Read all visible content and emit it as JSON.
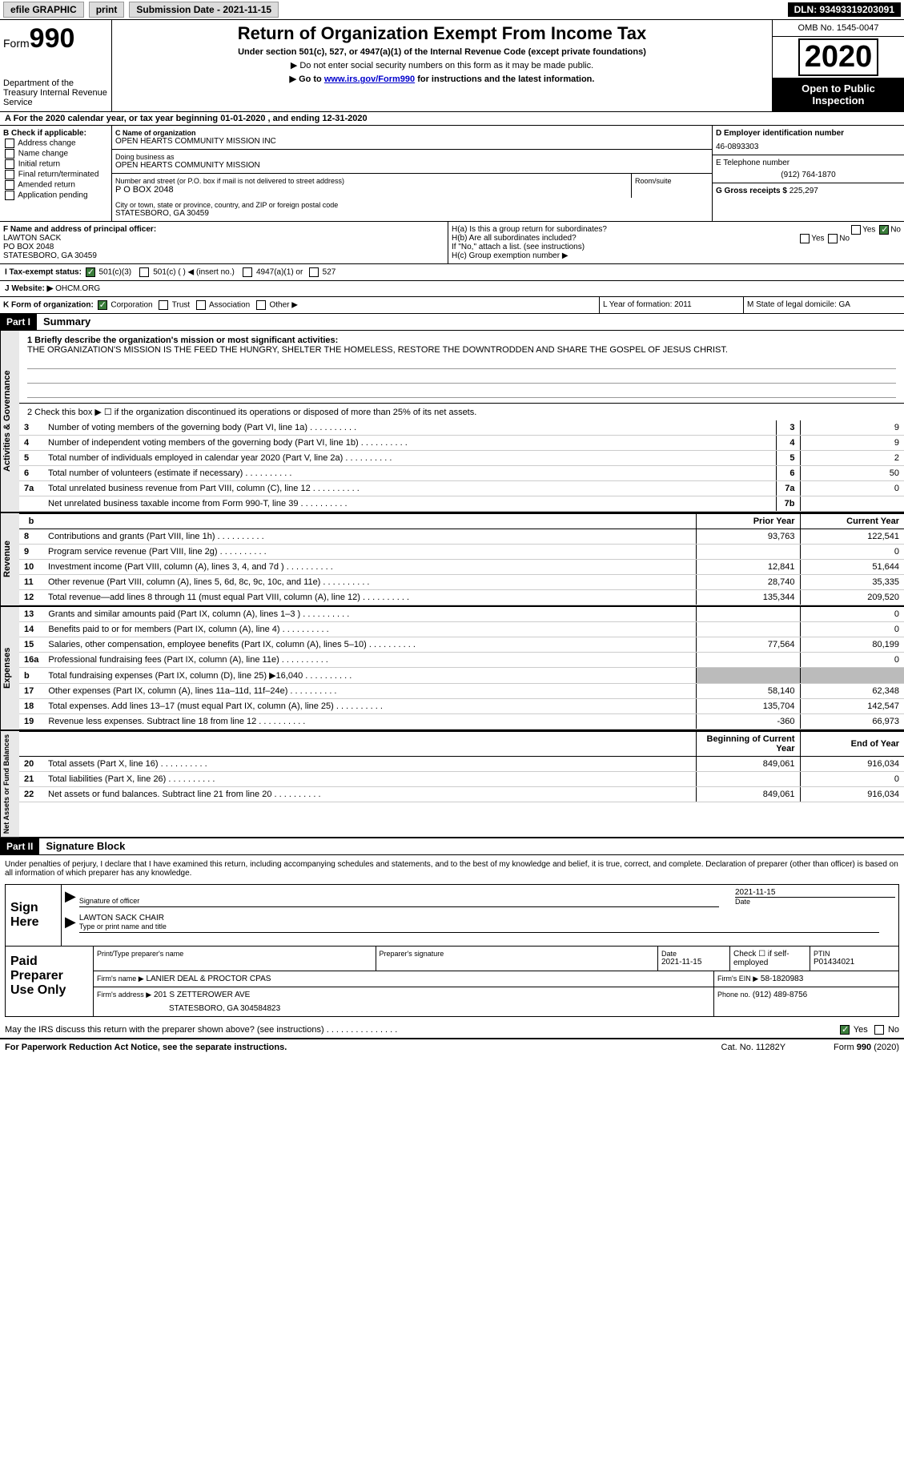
{
  "topbar": {
    "efile": "efile GRAPHIC",
    "print": "print",
    "submission_label": "Submission Date - 2021-11-15",
    "dln": "DLN: 93493319203091"
  },
  "header": {
    "form_label": "Form",
    "form_num": "990",
    "dept": "Department of the Treasury\nInternal Revenue Service",
    "title": "Return of Organization Exempt From Income Tax",
    "subtitle": "Under section 501(c), 527, or 4947(a)(1) of the Internal Revenue Code (except private foundations)",
    "arrow1": "▶ Do not enter social security numbers on this form as it may be made public.",
    "arrow2_pre": "▶ Go to ",
    "arrow2_link": "www.irs.gov/Form990",
    "arrow2_post": " for instructions and the latest information.",
    "omb": "OMB No. 1545-0047",
    "year": "2020",
    "open": "Open to Public Inspection"
  },
  "rowA": "A For the 2020 calendar year, or tax year beginning 01-01-2020   , and ending 12-31-2020",
  "boxB": {
    "label": "B Check if applicable:",
    "addr": "Address change",
    "name": "Name change",
    "init": "Initial return",
    "final": "Final return/terminated",
    "amend": "Amended return",
    "app": "Application pending"
  },
  "boxC": {
    "name_label": "C Name of organization",
    "name": "OPEN HEARTS COMMUNITY MISSION INC",
    "dba_label": "Doing business as",
    "dba": "OPEN HEARTS COMMUNITY MISSION",
    "addr_label": "Number and street (or P.O. box if mail is not delivered to street address)",
    "room_label": "Room/suite",
    "addr": "P O BOX 2048",
    "city_label": "City or town, state or province, country, and ZIP or foreign postal code",
    "city": "STATESBORO, GA  30459"
  },
  "boxD": {
    "ein_label": "D Employer identification number",
    "ein": "46-0893303",
    "phone_label": "E Telephone number",
    "phone": "(912) 764-1870",
    "gross_label": "G Gross receipts $",
    "gross": "225,297"
  },
  "boxF": {
    "label": "F Name and address of principal officer:",
    "name": "LAWTON SACK",
    "addr1": "PO BOX 2048",
    "addr2": "STATESBORO, GA  30459"
  },
  "boxH": {
    "ha": "H(a)  Is this a group return for subordinates?",
    "hb": "H(b)  Are all subordinates included?",
    "hb_note": "If \"No,\" attach a list. (see instructions)",
    "hc": "H(c)  Group exemption number ▶",
    "yes": "Yes",
    "no": "No"
  },
  "taxExempt": {
    "label": "I  Tax-exempt status:",
    "c3": "501(c)(3)",
    "c": "501(c) (  ) ◀ (insert no.)",
    "a1": "4947(a)(1) or",
    "s527": "527"
  },
  "website": {
    "label": "J  Website: ▶",
    "value": "OHCM.ORG"
  },
  "korg": {
    "label": "K Form of organization:",
    "corp": "Corporation",
    "trust": "Trust",
    "assoc": "Association",
    "other": "Other ▶"
  },
  "LM": {
    "l": "L Year of formation: 2011",
    "m": "M State of legal domicile: GA"
  },
  "part1": {
    "hdr": "Part I",
    "title": "Summary"
  },
  "governance": {
    "tab": "Activities & Governance",
    "line1_label": "1  Briefly describe the organization's mission or most significant activities:",
    "mission": "THE ORGANIZATION'S MISSION IS THE FEED THE HUNGRY, SHELTER THE HOMELESS, RESTORE THE DOWNTRODDEN AND SHARE THE GOSPEL OF JESUS CHRIST.",
    "line2": "2   Check this box ▶ ☐  if the organization discontinued its operations or disposed of more than 25% of its net assets.",
    "rows": [
      {
        "n": "3",
        "label": "Number of voting members of the governing body (Part VI, line 1a)",
        "box": "3",
        "val": "9"
      },
      {
        "n": "4",
        "label": "Number of independent voting members of the governing body (Part VI, line 1b)",
        "box": "4",
        "val": "9"
      },
      {
        "n": "5",
        "label": "Total number of individuals employed in calendar year 2020 (Part V, line 2a)",
        "box": "5",
        "val": "2"
      },
      {
        "n": "6",
        "label": "Total number of volunteers (estimate if necessary)",
        "box": "6",
        "val": "50"
      },
      {
        "n": "7a",
        "label": "Total unrelated business revenue from Part VIII, column (C), line 12",
        "box": "7a",
        "val": "0"
      },
      {
        "n": "",
        "label": "Net unrelated business taxable income from Form 990-T, line 39",
        "box": "7b",
        "val": ""
      }
    ]
  },
  "revenue": {
    "tab": "Revenue",
    "hdr_b": "b",
    "hdr_prior": "Prior Year",
    "hdr_curr": "Current Year",
    "rows": [
      {
        "n": "8",
        "label": "Contributions and grants (Part VIII, line 1h)",
        "py": "93,763",
        "cy": "122,541"
      },
      {
        "n": "9",
        "label": "Program service revenue (Part VIII, line 2g)",
        "py": "",
        "cy": "0"
      },
      {
        "n": "10",
        "label": "Investment income (Part VIII, column (A), lines 3, 4, and 7d )",
        "py": "12,841",
        "cy": "51,644"
      },
      {
        "n": "11",
        "label": "Other revenue (Part VIII, column (A), lines 5, 6d, 8c, 9c, 10c, and 11e)",
        "py": "28,740",
        "cy": "35,335"
      },
      {
        "n": "12",
        "label": "Total revenue—add lines 8 through 11 (must equal Part VIII, column (A), line 12)",
        "py": "135,344",
        "cy": "209,520"
      }
    ]
  },
  "expenses": {
    "tab": "Expenses",
    "rows": [
      {
        "n": "13",
        "label": "Grants and similar amounts paid (Part IX, column (A), lines 1–3 )",
        "py": "",
        "cy": "0"
      },
      {
        "n": "14",
        "label": "Benefits paid to or for members (Part IX, column (A), line 4)",
        "py": "",
        "cy": "0"
      },
      {
        "n": "15",
        "label": "Salaries, other compensation, employee benefits (Part IX, column (A), lines 5–10)",
        "py": "77,564",
        "cy": "80,199"
      },
      {
        "n": "16a",
        "label": "Professional fundraising fees (Part IX, column (A), line 11e)",
        "py": "",
        "cy": "0"
      },
      {
        "n": "b",
        "label": "Total fundraising expenses (Part IX, column (D), line 25) ▶16,040",
        "py": "grey",
        "cy": "grey"
      },
      {
        "n": "17",
        "label": "Other expenses (Part IX, column (A), lines 11a–11d, 11f–24e)",
        "py": "58,140",
        "cy": "62,348"
      },
      {
        "n": "18",
        "label": "Total expenses. Add lines 13–17 (must equal Part IX, column (A), line 25)",
        "py": "135,704",
        "cy": "142,547"
      },
      {
        "n": "19",
        "label": "Revenue less expenses. Subtract line 18 from line 12",
        "py": "-360",
        "cy": "66,973"
      }
    ]
  },
  "netassets": {
    "tab": "Net Assets or Fund Balances",
    "hdr_beg": "Beginning of Current Year",
    "hdr_end": "End of Year",
    "rows": [
      {
        "n": "20",
        "label": "Total assets (Part X, line 16)",
        "py": "849,061",
        "cy": "916,034"
      },
      {
        "n": "21",
        "label": "Total liabilities (Part X, line 26)",
        "py": "",
        "cy": "0"
      },
      {
        "n": "22",
        "label": "Net assets or fund balances. Subtract line 21 from line 20",
        "py": "849,061",
        "cy": "916,034"
      }
    ]
  },
  "part2": {
    "hdr": "Part II",
    "title": "Signature Block"
  },
  "sig": {
    "decl": "Under penalties of perjury, I declare that I have examined this return, including accompanying schedules and statements, and to the best of my knowledge and belief, it is true, correct, and complete. Declaration of preparer (other than officer) is based on all information of which preparer has any knowledge.",
    "sign_here": "Sign Here",
    "sig_officer": "Signature of officer",
    "date_label": "Date",
    "date": "2021-11-15",
    "name": "LAWTON SACK CHAIR",
    "name_label": "Type or print name and title"
  },
  "paid": {
    "label": "Paid Preparer Use Only",
    "r1": {
      "c1": "Print/Type preparer's name",
      "c2": "Preparer's signature",
      "c3": "Date",
      "c3v": "2021-11-15",
      "c4": "Check ☐ if self-employed",
      "c5": "PTIN",
      "c5v": "P01434021"
    },
    "r2": {
      "c1": "Firm's name    ▶",
      "c1v": "LANIER DEAL & PROCTOR CPAS",
      "c2": "Firm's EIN ▶",
      "c2v": "58-1820983"
    },
    "r3": {
      "c1": "Firm's address ▶",
      "c1v": "201 S ZETTEROWER AVE",
      "c1v2": "STATESBORO, GA  304584823",
      "c2": "Phone no.",
      "c2v": "(912) 489-8756"
    }
  },
  "discuss": {
    "q": "May the IRS discuss this return with the preparer shown above? (see instructions)",
    "yes": "Yes",
    "no": "No"
  },
  "footer": {
    "left": "For Paperwork Reduction Act Notice, see the separate instructions.",
    "mid": "Cat. No. 11282Y",
    "right": "Form 990 (2020)"
  }
}
